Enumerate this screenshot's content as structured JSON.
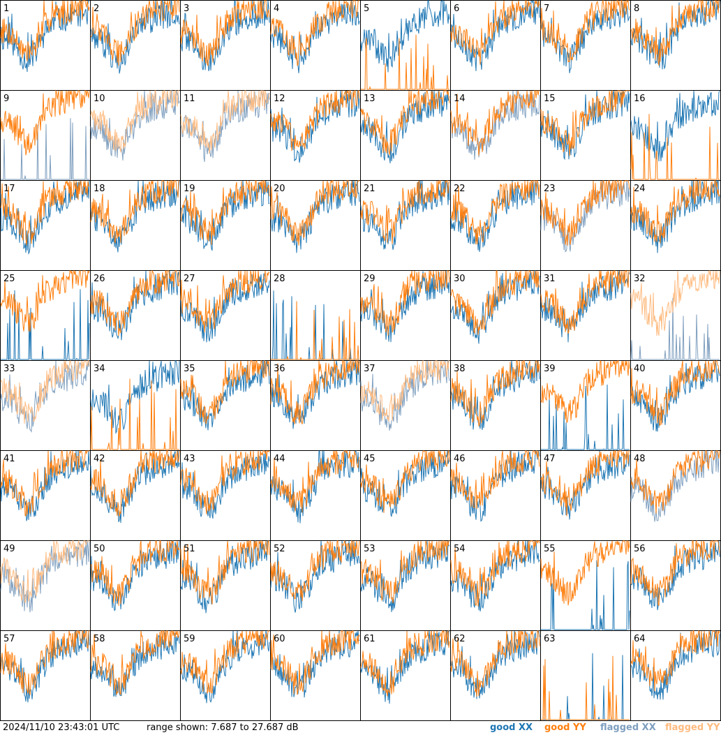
{
  "chart_data": {
    "type": "line",
    "title": "",
    "panels": [
      "1",
      "2",
      "3",
      "4",
      "5",
      "6",
      "7",
      "8",
      "9",
      "10",
      "11",
      "12",
      "13",
      "14",
      "15",
      "16",
      "17",
      "18",
      "19",
      "20",
      "21",
      "22",
      "23",
      "24",
      "25",
      "26",
      "27",
      "28",
      "29",
      "30",
      "31",
      "32",
      "33",
      "34",
      "35",
      "36",
      "37",
      "38",
      "39",
      "40",
      "41",
      "42",
      "43",
      "44",
      "45",
      "46",
      "47",
      "48",
      "49",
      "50",
      "51",
      "52",
      "53",
      "54",
      "55",
      "56",
      "57",
      "58",
      "59",
      "60",
      "61",
      "62",
      "63",
      "64"
    ],
    "ylim": [
      7.687,
      27.687
    ],
    "yunit": "dB",
    "series": [
      {
        "name": "good XX",
        "color": "#1f77b4"
      },
      {
        "name": "good YY",
        "color": "#ff7f0e"
      },
      {
        "name": "flagged XX",
        "color": "#7f9fbf"
      },
      {
        "name": "flagged YY",
        "color": "#ffbb80"
      }
    ],
    "panel_status": {
      "5": {
        "xx": "good",
        "yy": "dropout"
      },
      "9": {
        "xx": "flagged-dropout",
        "yy": "good"
      },
      "10": {
        "xx": "flagged",
        "yy": "flagged"
      },
      "11": {
        "xx": "flagged",
        "yy": "flagged"
      },
      "14": {
        "xx": "flagged",
        "yy": "good"
      },
      "16": {
        "xx": "good",
        "yy": "dropout"
      },
      "23": {
        "xx": "flagged",
        "yy": "good"
      },
      "25": {
        "xx": "dropout",
        "yy": "good"
      },
      "28": {
        "xx": "dropout",
        "yy": "dropout"
      },
      "32": {
        "xx": "flagged-dropout",
        "yy": "flagged"
      },
      "33": {
        "xx": "flagged",
        "yy": "flagged"
      },
      "34": {
        "xx": "good",
        "yy": "dropout"
      },
      "37": {
        "xx": "flagged",
        "yy": "flagged"
      },
      "39": {
        "xx": "dropout",
        "yy": "good"
      },
      "48": {
        "xx": "flagged",
        "yy": "good"
      },
      "49": {
        "xx": "flagged",
        "yy": "flagged"
      },
      "55": {
        "xx": "dropout",
        "yy": "good"
      },
      "63": {
        "xx": "dropout",
        "yy": "dropout"
      }
    }
  },
  "footer": {
    "timestamp": "2024/11/10 23:43:01 UTC",
    "range": "range shown: 7.687 to 27.687 dB",
    "legend": [
      "good XX",
      "good YY",
      "flagged XX",
      "flagged YY"
    ]
  }
}
